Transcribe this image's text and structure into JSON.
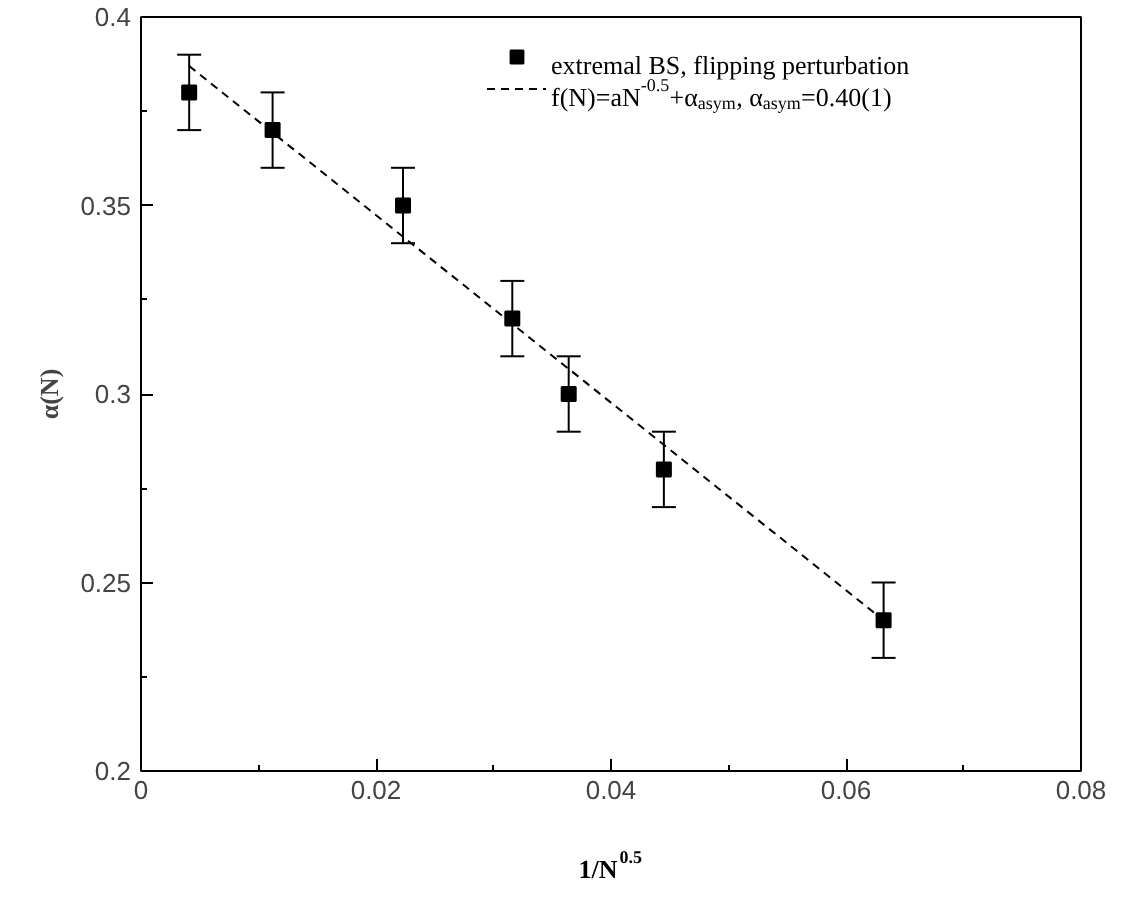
{
  "chart_data": {
    "type": "scatter",
    "xlabel": "1/N$^{0.5}$",
    "ylabel": "α(N)",
    "xlim": [
      0,
      0.08
    ],
    "ylim": [
      0.2,
      0.4
    ],
    "xticks": [
      0,
      0.02,
      0.04,
      0.06,
      0.08
    ],
    "yticks": [
      0.2,
      0.25,
      0.3,
      0.35,
      0.4
    ],
    "grid": false,
    "legend": "top right",
    "series": [
      {
        "name": "extremal BS, flipping perturbation",
        "marker": "square",
        "color": "#000000",
        "x": [
          0.0041,
          0.0112,
          0.0223,
          0.0316,
          0.0364,
          0.0445,
          0.0632
        ],
        "values": [
          0.38,
          0.37,
          0.35,
          0.32,
          0.3,
          0.28,
          0.24
        ],
        "errors": [
          0.01,
          0.01,
          0.01,
          0.01,
          0.01,
          0.01,
          0.01
        ]
      },
      {
        "name": "f(N)=aN$^{-0.5}$+α$_{asym}$, α$_{asym}$=0.40(1)",
        "type": "line",
        "line_style": "dashed",
        "color": "#000000",
        "x": [
          0.0041,
          0.0632
        ],
        "values": [
          0.387,
          0.24
        ]
      }
    ]
  }
}
